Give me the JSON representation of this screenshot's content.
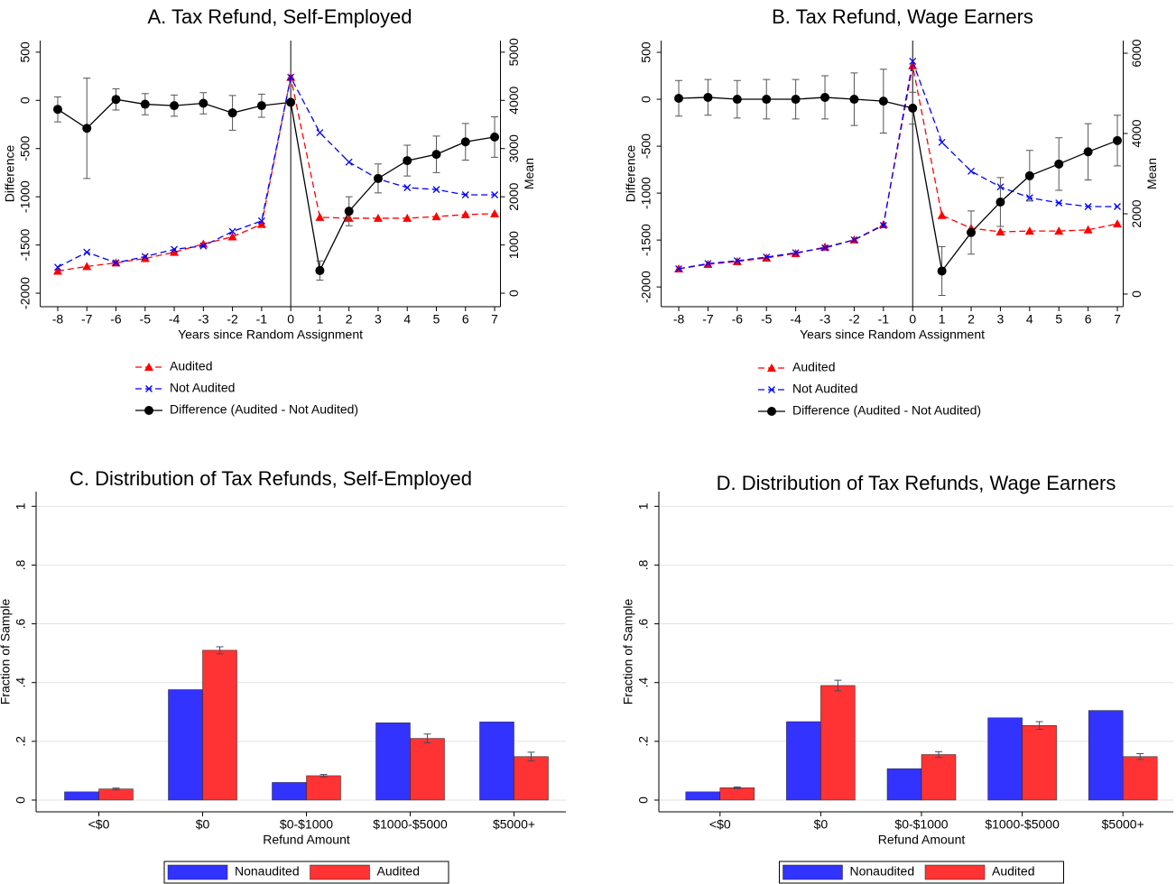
{
  "chart_data": [
    {
      "type": "line",
      "title": "A. Tax Refund, Self-Employed",
      "xlabel": "Years since Random Assignment",
      "ylabel": "Difference",
      "y2label": "Mean",
      "x": [
        -8,
        -7,
        -6,
        -5,
        -4,
        -3,
        -2,
        -1,
        0,
        1,
        2,
        3,
        4,
        5,
        6,
        7
      ],
      "xlim": [
        -8.6,
        7.2
      ],
      "xticks": [
        -8,
        -7,
        -6,
        -5,
        -4,
        -3,
        -2,
        -1,
        0,
        1,
        2,
        3,
        4,
        5,
        6,
        7
      ],
      "ylim": [
        -2140,
        620
      ],
      "yticks": [
        -2000,
        -1500,
        -1000,
        -500,
        0,
        500
      ],
      "y2lim": [
        -280,
        5240
      ],
      "y2ticks": [
        0,
        1000,
        2000,
        3000,
        4000,
        5000
      ],
      "vline": 0,
      "series": [
        {
          "name": "Audited",
          "color": "#ff0000",
          "marker": "triangle",
          "dash": true,
          "axis": "y2",
          "values": [
            460,
            555,
            630,
            720,
            850,
            1020,
            1170,
            1430,
            4480,
            1575,
            1555,
            1555,
            1555,
            1590,
            1630,
            1650
          ]
        },
        {
          "name": "Not Audited",
          "color": "#0000ff",
          "marker": "x",
          "dash": true,
          "axis": "y2",
          "values": [
            540,
            850,
            630,
            760,
            910,
            980,
            1280,
            1500,
            4480,
            3330,
            2720,
            2370,
            2190,
            2150,
            2040,
            2040
          ]
        },
        {
          "name": "Difference (Audited - Not Audited)",
          "color": "#000000",
          "marker": "circle",
          "dash": false,
          "axis": "y",
          "values": [
            -93,
            -290,
            10,
            -40,
            -55,
            -30,
            -130,
            -55,
            -20,
            -1765,
            -1150,
            -810,
            -625,
            -560,
            -430,
            -380
          ],
          "errors": [
            130,
            520,
            110,
            110,
            110,
            110,
            180,
            120,
            20,
            100,
            150,
            150,
            160,
            190,
            190,
            210
          ]
        }
      ]
    },
    {
      "type": "line",
      "title": "B. Tax Refund, Wage Earners",
      "xlabel": "Years since Random Assignment",
      "ylabel": "Difference",
      "y2label": "Mean",
      "x": [
        -8,
        -7,
        -6,
        -5,
        -4,
        -3,
        -2,
        -1,
        0,
        1,
        2,
        3,
        4,
        5,
        6,
        7
      ],
      "xlim": [
        -8.6,
        7.2
      ],
      "xticks": [
        -8,
        -7,
        -6,
        -5,
        -4,
        -3,
        -2,
        -1,
        0,
        1,
        2,
        3,
        4,
        5,
        6,
        7
      ],
      "ylim": [
        -2210,
        625
      ],
      "yticks": [
        -2000,
        -1500,
        -1000,
        -500,
        0,
        500
      ],
      "y2lim": [
        -315,
        6315
      ],
      "y2ticks": [
        0,
        2000,
        4000,
        6000
      ],
      "vline": 0,
      "series": [
        {
          "name": "Audited",
          "color": "#ff0000",
          "marker": "triangle",
          "dash": true,
          "axis": "y2",
          "values": [
            630,
            740,
            810,
            900,
            1010,
            1170,
            1350,
            1730,
            5690,
            1960,
            1640,
            1550,
            1570,
            1570,
            1600,
            1750
          ]
        },
        {
          "name": "Not Audited",
          "color": "#0000ff",
          "marker": "x",
          "dash": true,
          "axis": "y2",
          "values": [
            630,
            760,
            830,
            920,
            1030,
            1150,
            1350,
            1710,
            5800,
            3780,
            3060,
            2670,
            2400,
            2270,
            2180,
            2180
          ]
        },
        {
          "name": "Difference (Audited - Not Audited)",
          "color": "#000000",
          "marker": "circle",
          "dash": false,
          "axis": "y",
          "values": [
            10,
            20,
            0,
            0,
            0,
            20,
            0,
            -20,
            -95,
            -1830,
            -1420,
            -1095,
            -815,
            -690,
            -560,
            -440
          ],
          "errors": [
            190,
            190,
            200,
            210,
            210,
            230,
            280,
            340,
            170,
            260,
            230,
            260,
            270,
            280,
            300,
            270
          ]
        }
      ]
    },
    {
      "type": "bar",
      "title": "C. Distribution of Tax Refunds, Self-Employed",
      "xlabel": "Refund Amount",
      "ylabel": "Fraction of Sample",
      "categories": [
        "<$0",
        "$0",
        "$0-$1000",
        "$1000-$5000",
        "$5000+"
      ],
      "ylim": [
        -0.04,
        1.05
      ],
      "yticks": [
        0,
        {
          "value": 0.2,
          "label": ".2"
        },
        {
          "value": 0.4,
          "label": ".4"
        },
        {
          "value": 0.6,
          "label": ".6"
        },
        {
          "value": 0.8,
          "label": ".8"
        },
        1
      ],
      "grid": true,
      "series": [
        {
          "name": "Nonaudited",
          "color": "#3333ff",
          "values": [
            0.028,
            0.376,
            0.06,
            0.263,
            0.266
          ]
        },
        {
          "name": "Audited",
          "color": "#ff3333",
          "values": [
            0.038,
            0.51,
            0.083,
            0.21,
            0.148
          ],
          "errors": [
            0.003,
            0.012,
            0.004,
            0.015,
            0.015
          ]
        }
      ]
    },
    {
      "type": "bar",
      "title": "D. Distribution of Tax Refunds, Wage Earners",
      "xlabel": "Refund Amount",
      "ylabel": "Fraction of Sample",
      "categories": [
        "<$0",
        "$0",
        "$0-$1000",
        "$1000-$5000",
        "$5000+"
      ],
      "ylim": [
        -0.04,
        1.05
      ],
      "yticks": [
        0,
        {
          "value": 0.2,
          "label": ".2"
        },
        {
          "value": 0.4,
          "label": ".4"
        },
        {
          "value": 0.6,
          "label": ".6"
        },
        {
          "value": 0.8,
          "label": ".8"
        },
        1
      ],
      "grid": true,
      "series": [
        {
          "name": "Nonaudited",
          "color": "#3333ff",
          "values": [
            0.028,
            0.267,
            0.107,
            0.28,
            0.305
          ]
        },
        {
          "name": "Audited",
          "color": "#ff3333",
          "values": [
            0.042,
            0.39,
            0.155,
            0.254,
            0.148
          ],
          "errors": [
            0.003,
            0.018,
            0.01,
            0.013,
            0.01
          ]
        }
      ]
    }
  ]
}
